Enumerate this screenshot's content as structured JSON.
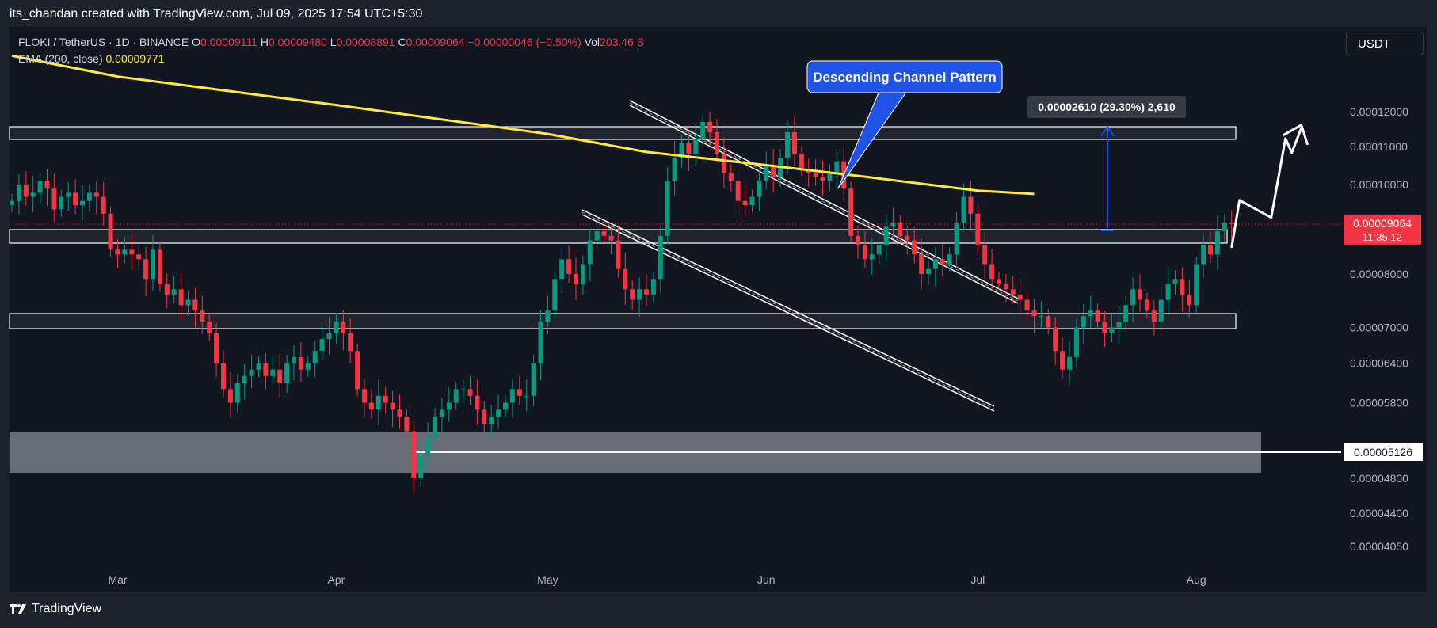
{
  "credit": "its_chandan created with TradingView.com, Jul 09, 2025 17:54 UTC+5:30",
  "header": {
    "symbol": "FLOKI / TetherUS · 1D · BINANCE",
    "o_label": "O",
    "o_value": "0.00009111",
    "h_label": "H",
    "h_value": "0.00009480",
    "l_label": "L",
    "l_value": "0.00008891",
    "c_label": "C",
    "c_value": "0.00009064",
    "change": "−0.00000046 (−0.50%)",
    "vol_label": "Vol",
    "vol_value": "203.46 B",
    "ema_label": "EMA (200, close)",
    "ema_value": "0.00009771"
  },
  "currency_button": "USDT",
  "footer_logo": "TradingView",
  "colors": {
    "up": "#089981",
    "down": "#f23645",
    "ema": "#ffeb3b",
    "callout": "#1e53e5",
    "price_badge": "#f23645",
    "background": "#121620"
  },
  "chart_data": {
    "type": "candlestick",
    "title": "FLOKI / TetherUS · 1D · BINANCE",
    "x_tick_labels": [
      "Mar",
      "Apr",
      "May",
      "Jun",
      "Jul",
      "Aug"
    ],
    "y_tick_labels": [
      "0.00012000",
      "0.00011000",
      "0.00010000",
      "0.00008000",
      "0.00007000",
      "0.00006400",
      "0.00005800",
      "0.00004800",
      "0.00004400",
      "0.00004050"
    ],
    "ylim": [
      3.8e-05,
      0.000135
    ],
    "y_scale": "log",
    "current_price": "0.00009064",
    "countdown": "11:35:12",
    "marked_level": "0.00005126",
    "measure_label": "0.00002610 (29.30%) 2,610",
    "annotation": "Descending Channel Pattern",
    "ema_series": [
      [
        "2025-02-14",
        0.000138
      ],
      [
        "2025-03-01",
        0.000131
      ],
      [
        "2025-04-01",
        0.000122
      ],
      [
        "2025-05-01",
        0.0001135
      ],
      [
        "2025-05-15",
        0.0001085
      ],
      [
        "2025-06-01",
        0.000105
      ],
      [
        "2025-06-15",
        0.000102
      ],
      [
        "2025-07-01",
        9.85e-05
      ],
      [
        "2025-07-09",
        9.77e-05
      ]
    ],
    "candles_close": [
      9.6e-05,
      0.0001,
      9.7e-05,
      9.8e-05,
      0.000101,
      9.9e-05,
      9.4e-05,
      9.7e-05,
      9.8e-05,
      9.5e-05,
      9.6e-05,
      9.8e-05,
      9.7e-05,
      9.3e-05,
      8.5e-05,
      8.4e-05,
      8.5e-05,
      8.4e-05,
      8.3e-05,
      7.9e-05,
      8.5e-05,
      7.8e-05,
      7.6e-05,
      7.7e-05,
      7.4e-05,
      7.5e-05,
      7.3e-05,
      7.1e-05,
      6.9e-05,
      6.4e-05,
      6e-05,
      5.8e-05,
      6.1e-05,
      6.2e-05,
      6.3e-05,
      6.4e-05,
      6.2e-05,
      6.3e-05,
      6.1e-05,
      6.4e-05,
      6.5e-05,
      6.3e-05,
      6.4e-05,
      6.6e-05,
      6.8e-05,
      6.9e-05,
      7.1e-05,
      6.9e-05,
      6.6e-05,
      6e-05,
      5.8e-05,
      5.7e-05,
      5.9e-05,
      5.8e-05,
      5.7e-05,
      5.6e-05,
      5.4e-05,
      4.8e-05,
      5.1e-05,
      5.3e-05,
      5.6e-05,
      5.7e-05,
      5.8e-05,
      6e-05,
      6e-05,
      5.9e-05,
      5.7e-05,
      5.5e-05,
      5.6e-05,
      5.7e-05,
      5.8e-05,
      6e-05,
      5.9e-05,
      5.9e-05,
      6.4e-05,
      7.1e-05,
      7.3e-05,
      7.9e-05,
      8.3e-05,
      8e-05,
      7.8e-05,
      8.2e-05,
      8.7e-05,
      8.9e-05,
      8.8e-05,
      8.7e-05,
      8.1e-05,
      7.7e-05,
      7.5e-05,
      7.7e-05,
      7.6e-05,
      7.9e-05,
      8.8e-05,
      0.000101,
      0.000107,
      0.000111,
      0.000108,
      0.000112,
      0.000117,
      0.000114,
      0.000108,
      0.000103,
      0.000101,
      9.6e-05,
      9.5e-05,
      9.7e-05,
      0.000101,
      0.000105,
      0.000102,
      0.000107,
      0.000114,
      0.000108,
      0.000104,
      0.000103,
      0.000102,
      0.000101,
      0.000103,
      0.000106,
      9.9e-05,
      8.8e-05,
      8.6e-05,
      8.3e-05,
      8.4e-05,
      8.6e-05,
      9e-05,
      9.1e-05,
      8.8e-05,
      8.7e-05,
      8.4e-05,
      8e-05,
      8.1e-05,
      8.3e-05,
      8.2e-05,
      8.4e-05,
      9.1e-05,
      9.7e-05,
      9.3e-05,
      8.6e-05,
      8.2e-05,
      7.9e-05,
      7.8e-05,
      7.7e-05,
      7.6e-05,
      7.5e-05,
      7.3e-05,
      7.2e-05,
      7.2e-05,
      7e-05,
      6.6e-05,
      6.3e-05,
      6.5e-05,
      7e-05,
      7.2e-05,
      7.3e-05,
      7.1e-05,
      6.9e-05,
      7e-05,
      7.1e-05,
      7.4e-05,
      7.7e-05,
      7.5e-05,
      7.3e-05,
      7.1e-05,
      7.5e-05,
      7.8e-05,
      7.9e-05,
      7.6e-05,
      7.4e-05,
      8.2e-05,
      8.6e-05,
      8.4e-05,
      8.9e-05,
      9.1e-05,
      9.064e-05
    ]
  }
}
